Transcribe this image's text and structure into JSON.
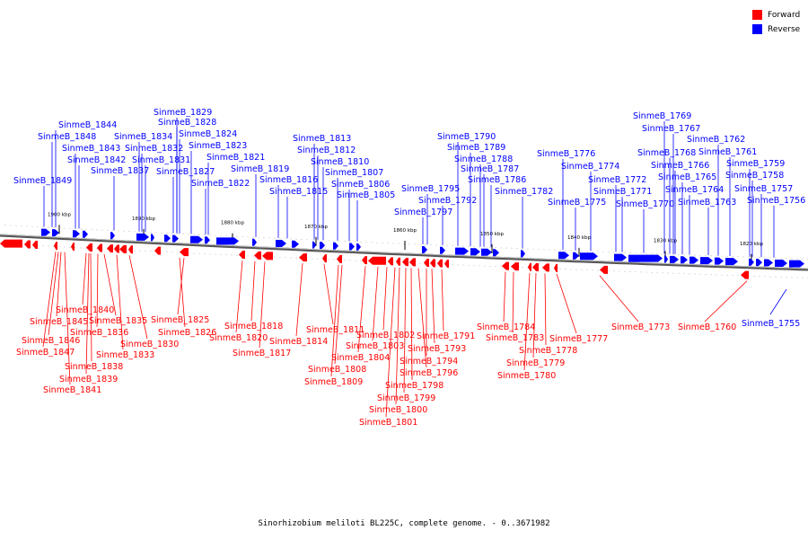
{
  "legend": {
    "forward_label": "Forward",
    "reverse_label": "Reverse",
    "forward_color": "#ff0000",
    "reverse_color": "#0000ff"
  },
  "caption": "Sinorhizobium meliloti BL225C, complete genome. - 0..3671982",
  "scale_labels": [
    "1900 kbp",
    "1890 kbp",
    "1880 kbp",
    "1870 kbp",
    "1860 kbp",
    "1850 kbp",
    "1840 kbp",
    "1830 kbp",
    "1820 kbp"
  ],
  "reverse_genes": [
    "SinmeB_1849",
    "SinmeB_1848",
    "SinmeB_1844",
    "SinmeB_1843",
    "SinmeB_1842",
    "SinmeB_1837",
    "SinmeB_1834",
    "SinmeB_1832",
    "SinmeB_1831",
    "SinmeB_1829",
    "SinmeB_1828",
    "SinmeB_1827",
    "SinmeB_1824",
    "SinmeB_1823",
    "SinmeB_1822",
    "SinmeB_1821",
    "SinmeB_1819",
    "SinmeB_1816",
    "SinmeB_1815",
    "SinmeB_1813",
    "SinmeB_1812",
    "SinmeB_1810",
    "SinmeB_1807",
    "SinmeB_1806",
    "SinmeB_1805",
    "SinmeB_1797",
    "SinmeB_1795",
    "SinmeB_1792",
    "SinmeB_1790",
    "SinmeB_1789",
    "SinmeB_1788",
    "SinmeB_1787",
    "SinmeB_1786",
    "SinmeB_1782",
    "SinmeB_1776",
    "SinmeB_1775",
    "SinmeB_1774",
    "SinmeB_1772",
    "SinmeB_1771",
    "SinmeB_1770",
    "SinmeB_1769",
    "SinmeB_1768",
    "SinmeB_1767",
    "SinmeB_1766",
    "SinmeB_1765",
    "SinmeB_1764",
    "SinmeB_1763",
    "SinmeB_1762",
    "SinmeB_1761",
    "SinmeB_1759",
    "SinmeB_1758",
    "SinmeB_1757",
    "SinmeB_1756",
    "SinmeB_1755"
  ],
  "forward_genes": [
    "SinmeB_1847",
    "SinmeB_1846",
    "SinmeB_1845",
    "SinmeB_1841",
    "SinmeB_1840",
    "SinmeB_1839",
    "SinmeB_1838",
    "SinmeB_1836",
    "SinmeB_1835",
    "SinmeB_1833",
    "SinmeB_1830",
    "SinmeB_1826",
    "SinmeB_1825",
    "SinmeB_1820",
    "SinmeB_1818",
    "SinmeB_1817",
    "SinmeB_1814",
    "SinmeB_1811",
    "SinmeB_1809",
    "SinmeB_1808",
    "SinmeB_1804",
    "SinmeB_1803",
    "SinmeB_1802",
    "SinmeB_1801",
    "SinmeB_1800",
    "SinmeB_1799",
    "SinmeB_1798",
    "SinmeB_1796",
    "SinmeB_1794",
    "SinmeB_1793",
    "SinmeB_1791",
    "SinmeB_1784",
    "SinmeB_1783",
    "SinmeB_1780",
    "SinmeB_1779",
    "SinmeB_1778",
    "SinmeB_1777",
    "SinmeB_1773",
    "SinmeB_1760"
  ]
}
